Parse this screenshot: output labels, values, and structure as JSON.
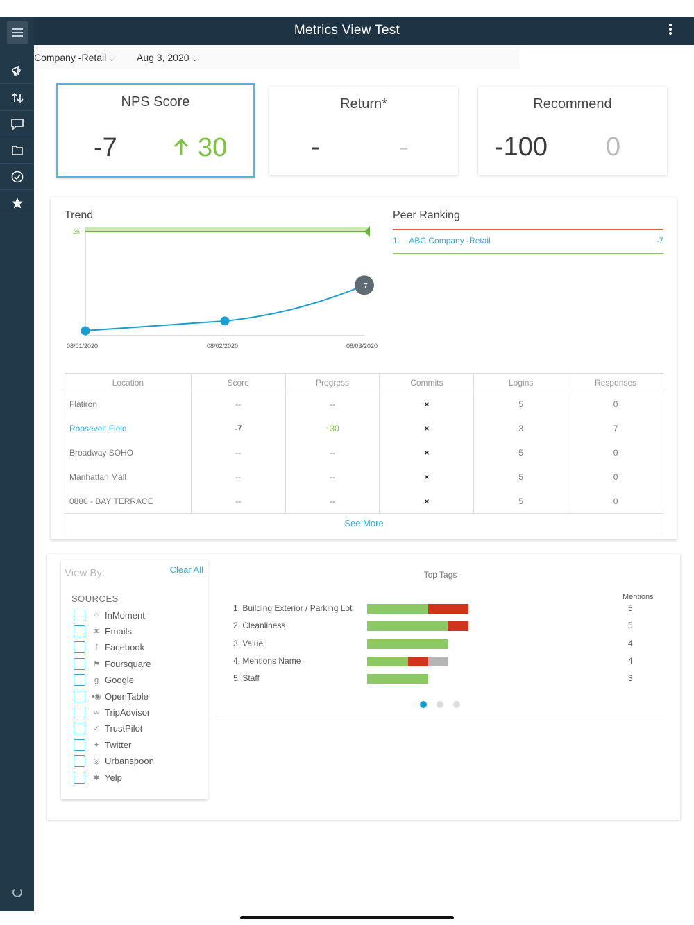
{
  "app": {
    "title": "Metrics View Test"
  },
  "filters": {
    "company": "Company -Retail",
    "date": "Aug 3, 2020"
  },
  "kpis": [
    {
      "title": "NPS Score",
      "value": "-7",
      "change": "30",
      "change_color": "#7dc242"
    },
    {
      "title": "Return*",
      "value": "-",
      "change": "–"
    },
    {
      "title": "Recommend",
      "value": "-100",
      "change": "0"
    }
  ],
  "trend": {
    "title": "Trend",
    "target_label": "26",
    "end_label": "-7"
  },
  "chart_data": {
    "type": "line",
    "title": "Trend",
    "x": [
      "08/01/2020",
      "08/02/2020",
      "08/03/2020"
    ],
    "series": [
      {
        "values": [
          -35,
          -29,
          -7
        ],
        "color": "#199ed1"
      }
    ],
    "target_line": 26,
    "ylim": [
      -38,
      26
    ]
  },
  "peer_ranking": {
    "title": "Peer Ranking",
    "items": [
      {
        "rank": "1.",
        "name": "ABC Company -Retail",
        "score": "-7"
      }
    ]
  },
  "locations": {
    "headers": [
      "Location",
      "Score",
      "Progress",
      "Commits",
      "Logins",
      "Responses"
    ],
    "rows": [
      {
        "location": "Flatiron",
        "score": "--",
        "progress": "--",
        "commits": "×",
        "logins": "5",
        "responses": "0"
      },
      {
        "location": "Roosevelt Field",
        "score": "-7",
        "progress": "30",
        "commits": "×",
        "logins": "3",
        "responses": "7"
      },
      {
        "location": "Broadway SOHO",
        "score": "--",
        "progress": "--",
        "commits": "×",
        "logins": "5",
        "responses": "0"
      },
      {
        "location": "Manhattan Mall",
        "score": "--",
        "progress": "--",
        "commits": "×",
        "logins": "5",
        "responses": "0"
      },
      {
        "location": "0880 - BAY TERRACE",
        "score": "--",
        "progress": "--",
        "commits": "×",
        "logins": "5",
        "responses": "0"
      }
    ],
    "see_more": "See More"
  },
  "view_by": {
    "label": "View By:",
    "clear_all": "Clear All",
    "sources_label": "SOURCES",
    "sources": [
      "InMoment",
      "Emails",
      "Facebook",
      "Foursquare",
      "Google",
      "OpenTable",
      "TripAdvisor",
      "TrustPilot",
      "Twitter",
      "Urbanspoon",
      "Yelp"
    ]
  },
  "top_tags": {
    "title": "Top Tags",
    "mentions_label": "Mentions",
    "tags": [
      {
        "label": "1. Building Exterior / Parking Lot",
        "mentions": "5",
        "positive": 3,
        "negative": 2,
        "neutral": 0
      },
      {
        "label": "2. Cleanliness",
        "mentions": "5",
        "positive": 4,
        "negative": 1,
        "neutral": 0
      },
      {
        "label": "3. Value",
        "mentions": "4",
        "positive": 4,
        "negative": 0,
        "neutral": 0
      },
      {
        "label": "4. Mentions Name",
        "mentions": "4",
        "positive": 2,
        "negative": 1,
        "neutral": 1
      },
      {
        "label": "5. Staff",
        "mentions": "3",
        "positive": 3,
        "negative": 0,
        "neutral": 0
      }
    ],
    "colors": {
      "positive": "#8cc864",
      "negative": "#d0341c",
      "neutral": "#b5b5b5"
    },
    "active_page": 1,
    "page_count": 3
  }
}
